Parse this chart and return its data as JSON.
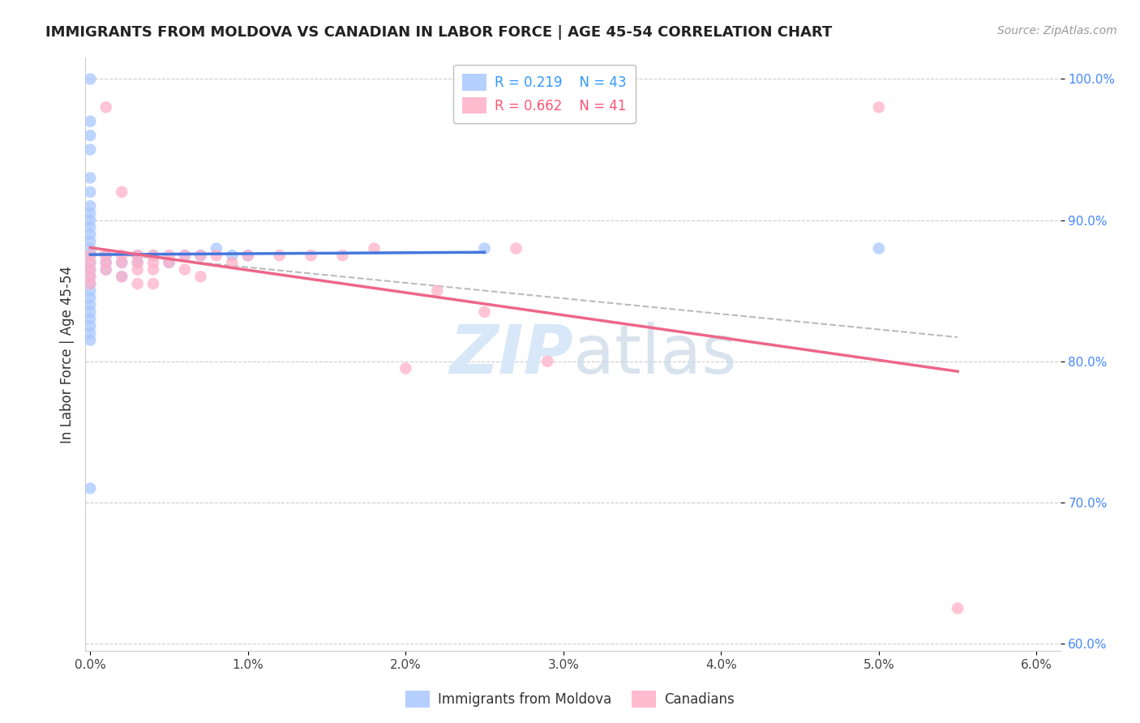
{
  "title": "IMMIGRANTS FROM MOLDOVA VS CANADIAN IN LABOR FORCE | AGE 45-54 CORRELATION CHART",
  "source": "Source: ZipAtlas.com",
  "ylabel": "In Labor Force | Age 45-54",
  "r_moldova": 0.219,
  "n_moldova": 43,
  "r_canadian": 0.662,
  "n_canadian": 41,
  "xlim": [
    -0.0003,
    0.0615
  ],
  "ylim": [
    0.595,
    1.015
  ],
  "xtick_vals": [
    0.0,
    0.01,
    0.02,
    0.03,
    0.04,
    0.05,
    0.06
  ],
  "ytick_vals": [
    0.6,
    0.7,
    0.8,
    0.9,
    1.0
  ],
  "color_moldova": "#A8C8FF",
  "color_canadian": "#FFB0C8",
  "line_moldova": "#4477DD",
  "line_canadian": "#EE6688",
  "line_dashed": "#BBBBBB",
  "background_color": "#FFFFFF",
  "moldova_x": [
    0.0,
    0.0,
    0.0,
    0.0,
    0.0,
    0.0,
    0.0,
    0.0,
    0.0,
    0.0,
    0.0,
    0.0,
    0.0,
    0.0,
    0.0,
    0.0,
    0.0,
    0.0,
    0.0,
    0.0,
    0.0,
    0.0,
    0.0,
    0.0,
    0.0,
    0.0,
    0.0,
    0.001,
    0.001,
    0.001,
    0.002,
    0.002,
    0.003,
    0.003,
    0.004,
    0.005,
    0.006,
    0.007,
    0.008,
    0.009,
    0.01,
    0.025,
    0.05
  ],
  "moldova_y": [
    1.0,
    0.97,
    0.96,
    0.95,
    0.93,
    0.92,
    0.91,
    0.905,
    0.9,
    0.895,
    0.89,
    0.885,
    0.88,
    0.875,
    0.87,
    0.865,
    0.86,
    0.855,
    0.85,
    0.845,
    0.84,
    0.835,
    0.83,
    0.825,
    0.82,
    0.815,
    0.71,
    0.875,
    0.87,
    0.865,
    0.87,
    0.86,
    0.875,
    0.87,
    0.875,
    0.87,
    0.875,
    0.875,
    0.88,
    0.875,
    0.875,
    0.88,
    0.88
  ],
  "canadian_x": [
    0.0,
    0.0,
    0.0,
    0.0,
    0.0,
    0.001,
    0.001,
    0.001,
    0.001,
    0.002,
    0.002,
    0.002,
    0.002,
    0.003,
    0.003,
    0.003,
    0.003,
    0.004,
    0.004,
    0.004,
    0.004,
    0.005,
    0.005,
    0.006,
    0.006,
    0.007,
    0.007,
    0.008,
    0.009,
    0.01,
    0.012,
    0.014,
    0.016,
    0.018,
    0.02,
    0.022,
    0.025,
    0.027,
    0.029,
    0.05,
    0.055
  ],
  "canadian_y": [
    0.875,
    0.87,
    0.865,
    0.86,
    0.855,
    0.98,
    0.875,
    0.87,
    0.865,
    0.92,
    0.875,
    0.87,
    0.86,
    0.875,
    0.87,
    0.865,
    0.855,
    0.875,
    0.87,
    0.865,
    0.855,
    0.875,
    0.87,
    0.875,
    0.865,
    0.875,
    0.86,
    0.875,
    0.87,
    0.875,
    0.875,
    0.875,
    0.875,
    0.88,
    0.795,
    0.85,
    0.835,
    0.88,
    0.8,
    0.98,
    0.625
  ]
}
